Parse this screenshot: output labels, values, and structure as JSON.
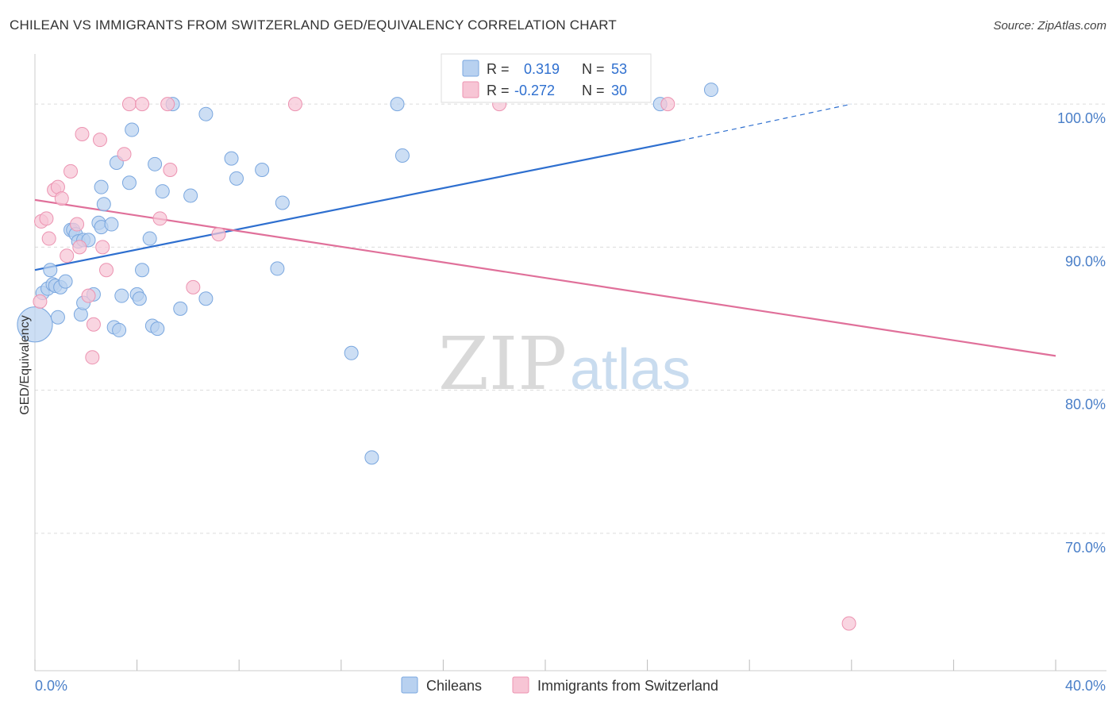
{
  "header": {
    "title": "CHILEAN VS IMMIGRANTS FROM SWITZERLAND GED/EQUIVALENCY CORRELATION CHART",
    "source": "Source: ZipAtlas.com"
  },
  "watermark": {
    "zip": "ZIP",
    "atlas": "atlas"
  },
  "colors": {
    "blue_fill": "#b8d1f0",
    "blue_stroke": "#7aa7df",
    "blue_line": "#2e6fcf",
    "pink_fill": "#f7c5d5",
    "pink_stroke": "#ec93b1",
    "pink_line": "#e0709a",
    "tick_text": "#4a7fc8",
    "grid": "#dcdcdc"
  },
  "legend_box": {
    "rows": [
      {
        "r_label": "R =",
        "r_value": "0.319",
        "n_label": "N =",
        "n_value": "53"
      },
      {
        "r_label": "R =",
        "r_value": "-0.272",
        "n_label": "N =",
        "n_value": "30"
      }
    ]
  },
  "bottom_legend": {
    "series1": "Chileans",
    "series2": "Immigrants from Switzerland"
  },
  "chart_data": {
    "type": "scatter",
    "title": "CHILEAN VS IMMIGRANTS FROM SWITZERLAND GED/EQUIVALENCY CORRELATION CHART",
    "xlabel": "",
    "ylabel": "GED/Equivalency",
    "xlim": [
      0,
      40
    ],
    "ylim": [
      60.4,
      103.5
    ],
    "x_tick_labels": [
      {
        "value": 0,
        "label": "0.0%"
      },
      {
        "value": 40,
        "label": "40.0%"
      }
    ],
    "y_tick_labels": [
      {
        "value": 100,
        "label": "100.0%"
      },
      {
        "value": 90,
        "label": "90.0%"
      },
      {
        "value": 80,
        "label": "80.0%"
      },
      {
        "value": 70,
        "label": "70.0%"
      }
    ],
    "grid_y": [
      100,
      90,
      80,
      70
    ],
    "x_minor_ticks": [
      0,
      4,
      8,
      12,
      16,
      20,
      24,
      28,
      32,
      36,
      40
    ],
    "series": [
      {
        "name": "Chileans",
        "color": "blue",
        "r": 0.319,
        "n": 53,
        "trend": {
          "x0": 0,
          "y0": 88.4,
          "x1": 25.3,
          "y1": 97.45,
          "dash_x1": 32.0,
          "dash_y1": 100.0
        },
        "points": [
          [
            0.0,
            84.6,
            2.6
          ],
          [
            0.3,
            86.8,
            1
          ],
          [
            0.5,
            87.1,
            1
          ],
          [
            0.6,
            88.4,
            1
          ],
          [
            0.7,
            87.4,
            1
          ],
          [
            0.8,
            87.3,
            1
          ],
          [
            0.9,
            85.1,
            1
          ],
          [
            1.0,
            87.2,
            1
          ],
          [
            1.2,
            87.6,
            1
          ],
          [
            1.4,
            91.2,
            1
          ],
          [
            1.5,
            91.2,
            1
          ],
          [
            1.6,
            90.9,
            1
          ],
          [
            1.7,
            90.4,
            1
          ],
          [
            1.9,
            90.5,
            1
          ],
          [
            2.1,
            90.5,
            1
          ],
          [
            1.8,
            85.3,
            1
          ],
          [
            1.9,
            86.1,
            1
          ],
          [
            2.3,
            86.7,
            1
          ],
          [
            2.5,
            91.7,
            1
          ],
          [
            2.6,
            91.4,
            1
          ],
          [
            2.6,
            94.2,
            1
          ],
          [
            2.7,
            93.0,
            1
          ],
          [
            3.0,
            91.6,
            1
          ],
          [
            3.1,
            84.4,
            1
          ],
          [
            3.2,
            95.9,
            1
          ],
          [
            3.3,
            84.2,
            1
          ],
          [
            3.4,
            86.6,
            1
          ],
          [
            3.7,
            94.5,
            1
          ],
          [
            3.8,
            98.2,
            1
          ],
          [
            4.0,
            86.7,
            1
          ],
          [
            4.1,
            86.4,
            1
          ],
          [
            4.2,
            88.4,
            1
          ],
          [
            4.5,
            90.6,
            1
          ],
          [
            4.6,
            84.5,
            1
          ],
          [
            4.7,
            95.8,
            1
          ],
          [
            4.8,
            84.3,
            1
          ],
          [
            5.0,
            93.9,
            1
          ],
          [
            5.4,
            100.0,
            1
          ],
          [
            5.7,
            85.7,
            1
          ],
          [
            6.1,
            93.6,
            1
          ],
          [
            6.7,
            99.3,
            1
          ],
          [
            6.7,
            86.4,
            1
          ],
          [
            7.7,
            96.2,
            1
          ],
          [
            7.9,
            94.8,
            1
          ],
          [
            8.9,
            95.4,
            1
          ],
          [
            9.5,
            88.5,
            1
          ],
          [
            9.7,
            93.1,
            1
          ],
          [
            12.4,
            82.6,
            1
          ],
          [
            13.2,
            75.3,
            1
          ],
          [
            14.2,
            100.0,
            1
          ],
          [
            14.4,
            96.4,
            1
          ],
          [
            24.5,
            100.0,
            1
          ],
          [
            26.5,
            101.0,
            1
          ]
        ]
      },
      {
        "name": "Immigrants from Switzerland",
        "color": "pink",
        "r": -0.272,
        "n": 30,
        "trend": {
          "x0": 0,
          "y0": 93.3,
          "x1": 40,
          "y1": 82.4
        },
        "points": [
          [
            0.2,
            86.2,
            1
          ],
          [
            0.25,
            91.8,
            1
          ],
          [
            0.45,
            92.0,
            1
          ],
          [
            0.55,
            90.6,
            1
          ],
          [
            0.75,
            94.0,
            1
          ],
          [
            0.9,
            94.2,
            1
          ],
          [
            1.05,
            93.4,
            1
          ],
          [
            1.25,
            89.4,
            1
          ],
          [
            1.4,
            95.3,
            1
          ],
          [
            1.65,
            91.6,
            1
          ],
          [
            1.75,
            90.0,
            1
          ],
          [
            1.85,
            97.9,
            1
          ],
          [
            2.1,
            86.6,
            1
          ],
          [
            2.3,
            84.6,
            1
          ],
          [
            2.25,
            82.3,
            1
          ],
          [
            2.55,
            97.5,
            1
          ],
          [
            2.65,
            90.0,
            1
          ],
          [
            2.8,
            88.4,
            1
          ],
          [
            3.5,
            96.5,
            1
          ],
          [
            3.7,
            100.0,
            1
          ],
          [
            4.2,
            100.0,
            1
          ],
          [
            4.9,
            92.0,
            1
          ],
          [
            5.2,
            100.0,
            1
          ],
          [
            5.3,
            95.4,
            1
          ],
          [
            6.2,
            87.2,
            1
          ],
          [
            7.2,
            90.9,
            1
          ],
          [
            10.2,
            100.0,
            1
          ],
          [
            18.2,
            100.0,
            1
          ],
          [
            24.8,
            100.0,
            1
          ],
          [
            31.9,
            63.7,
            1
          ]
        ]
      }
    ]
  }
}
